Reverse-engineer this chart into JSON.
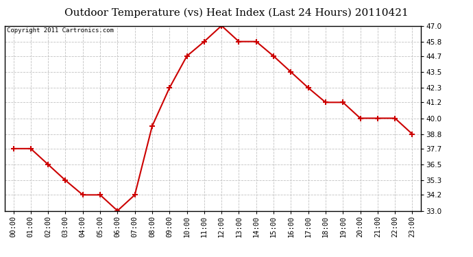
{
  "title": "Outdoor Temperature (vs) Heat Index (Last 24 Hours) 20110421",
  "copyright": "Copyright 2011 Cartronics.com",
  "x_labels": [
    "00:00",
    "01:00",
    "02:00",
    "03:00",
    "04:00",
    "05:00",
    "06:00",
    "07:00",
    "08:00",
    "09:00",
    "10:00",
    "11:00",
    "12:00",
    "13:00",
    "14:00",
    "15:00",
    "16:00",
    "17:00",
    "18:00",
    "19:00",
    "20:00",
    "21:00",
    "22:00",
    "23:00"
  ],
  "y_values": [
    37.7,
    37.7,
    36.5,
    35.3,
    34.2,
    34.2,
    33.0,
    34.2,
    39.4,
    42.3,
    44.7,
    45.8,
    47.0,
    45.8,
    45.8,
    44.7,
    43.5,
    42.3,
    41.2,
    41.2,
    40.0,
    40.0,
    40.0,
    38.8
  ],
  "line_color": "#cc0000",
  "marker": "+",
  "marker_color": "#cc0000",
  "marker_size": 6,
  "marker_linewidth": 1.5,
  "line_width": 1.5,
  "y_min": 33.0,
  "y_max": 47.0,
  "y_ticks": [
    33.0,
    34.2,
    35.3,
    36.5,
    37.7,
    38.8,
    40.0,
    41.2,
    42.3,
    43.5,
    44.7,
    45.8,
    47.0
  ],
  "background_color": "#ffffff",
  "plot_bg_color": "#ffffff",
  "grid_color": "#bbbbbb",
  "title_fontsize": 11,
  "copyright_fontsize": 6.5,
  "tick_fontsize": 7.5,
  "axis_label_color": "#000000"
}
